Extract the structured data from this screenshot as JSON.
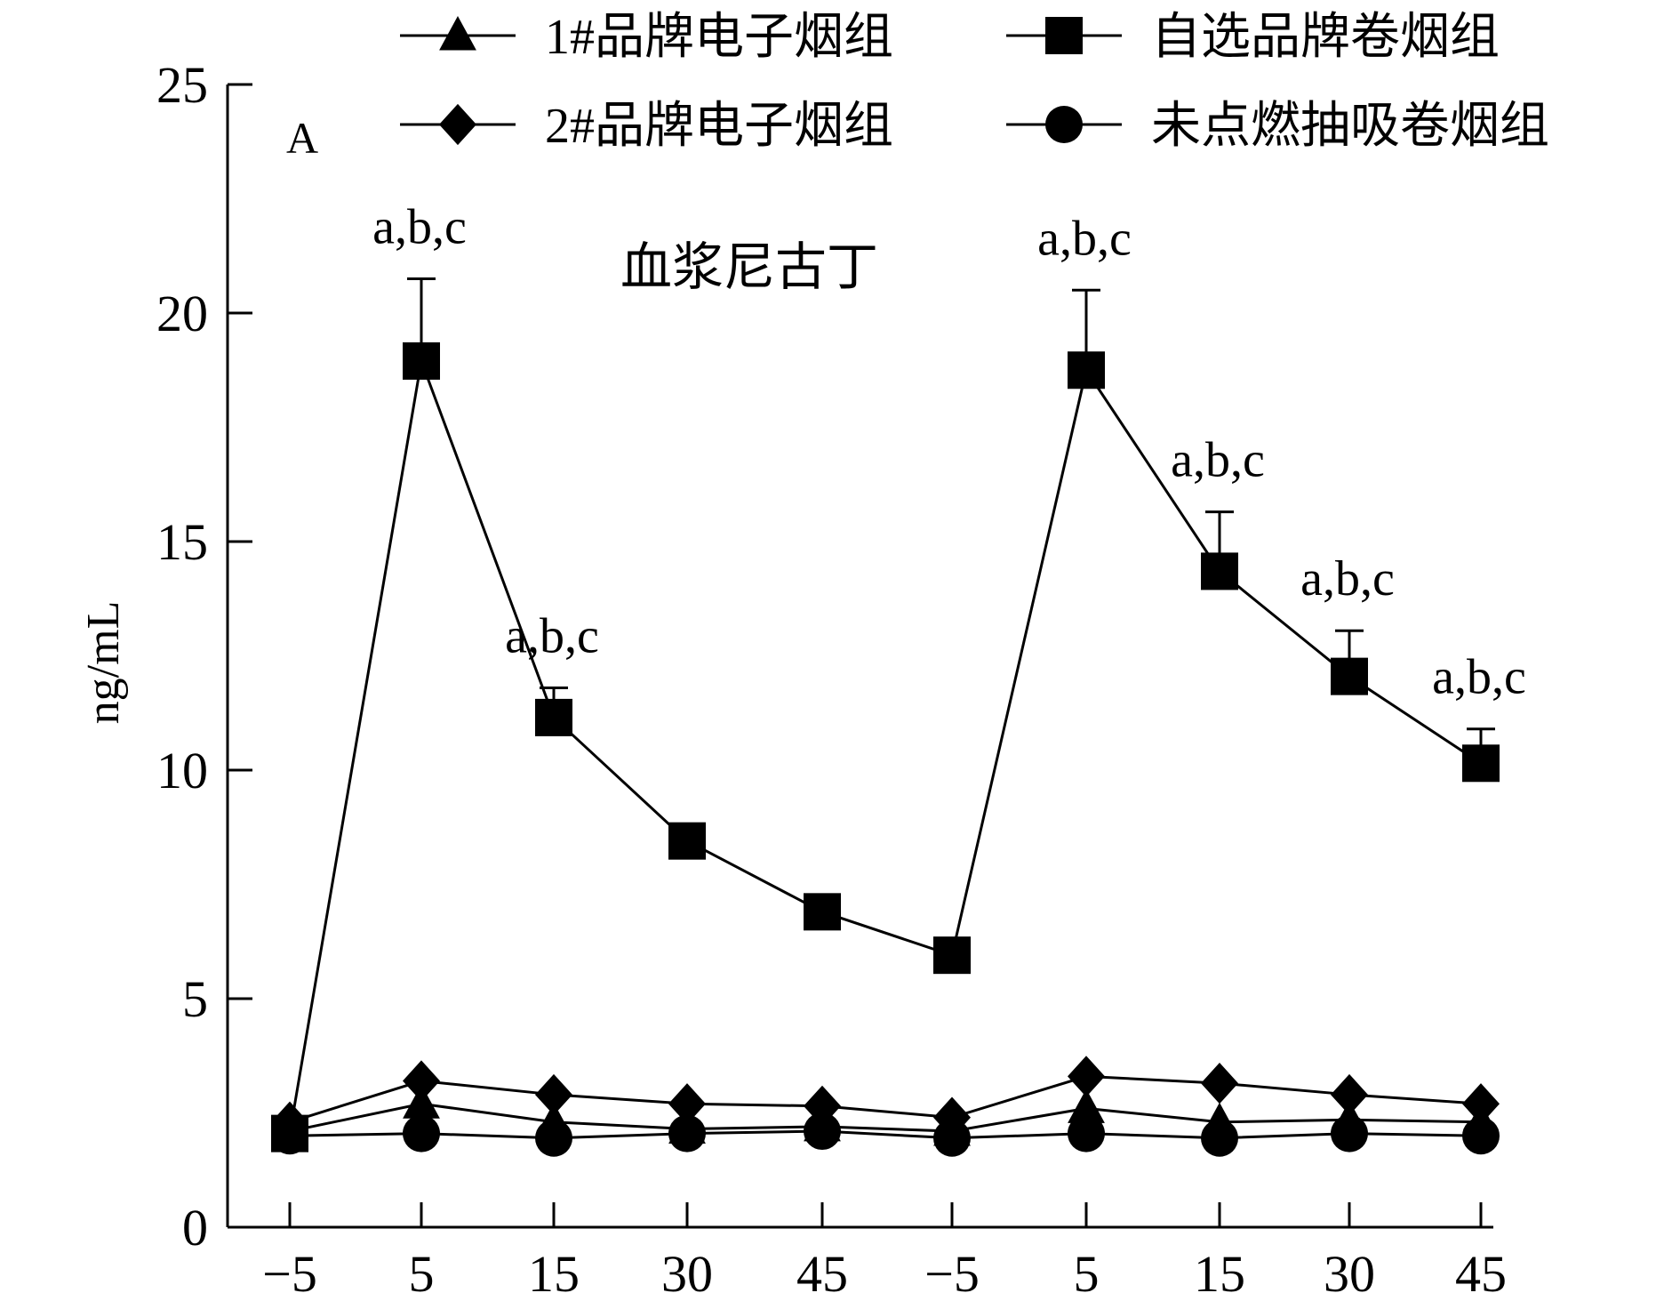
{
  "chart_data": {
    "type": "line",
    "panel_label": "A",
    "title": "血浆尼古丁",
    "xlabel": "",
    "ylabel": "ng/mL",
    "ylim": [
      0,
      25
    ],
    "yticks": [
      0,
      5,
      10,
      15,
      20,
      25
    ],
    "categories": [
      "−5",
      "5",
      "15",
      "30",
      "45",
      "−5",
      "5",
      "15",
      "30",
      "45"
    ],
    "grid": false,
    "legend_position": "top",
    "series": [
      {
        "name": "1#品牌电子烟组",
        "marker": "triangle",
        "values": [
          2.1,
          2.7,
          2.3,
          2.15,
          2.2,
          2.1,
          2.6,
          2.3,
          2.35,
          2.3
        ]
      },
      {
        "name": "自选品牌卷烟组",
        "marker": "square",
        "values": [
          2.05,
          18.95,
          11.15,
          8.45,
          6.9,
          5.95,
          18.75,
          14.35,
          12.05,
          10.15
        ],
        "error_upper": [
          null,
          20.75,
          11.8,
          null,
          null,
          null,
          20.5,
          15.65,
          13.05,
          10.9
        ]
      },
      {
        "name": "2#品牌电子烟组",
        "marker": "diamond",
        "values": [
          2.3,
          3.2,
          2.9,
          2.7,
          2.65,
          2.4,
          3.3,
          3.15,
          2.9,
          2.7
        ]
      },
      {
        "name": "未点燃抽吸卷烟组",
        "marker": "circle",
        "values": [
          2.0,
          2.05,
          1.95,
          2.05,
          2.1,
          1.95,
          2.05,
          1.95,
          2.05,
          2.0
        ]
      }
    ],
    "annotations": [
      {
        "index": 1,
        "text": "a,b,c"
      },
      {
        "index": 2,
        "text": "a,b,c"
      },
      {
        "index": 6,
        "text": "a,b,c"
      },
      {
        "index": 7,
        "text": "a,b,c"
      },
      {
        "index": 8,
        "text": "a,b,c"
      },
      {
        "index": 9,
        "text": "a,b,c"
      }
    ]
  }
}
